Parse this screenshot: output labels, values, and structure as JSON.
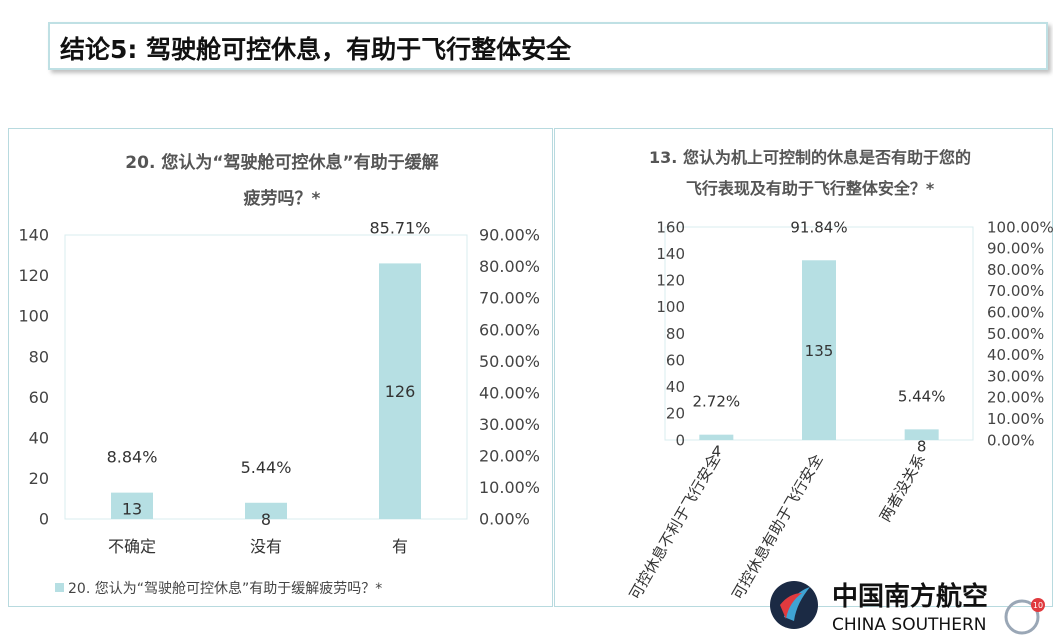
{
  "slide": {
    "title": "结论5: 驾驶舱可控休息，有助于飞行整体安全",
    "page_number": "10"
  },
  "chart_data": [
    {
      "type": "bar",
      "title": [
        "20. 您认为“驾驶舱可控休息”有助于缓解",
        "疲劳吗？*"
      ],
      "categories": [
        "不确定",
        "没有",
        "有"
      ],
      "values": [
        13,
        8,
        126
      ],
      "percent_labels": [
        "8.84%",
        "5.44%",
        "85.71%"
      ],
      "value_labels": [
        "13",
        "8",
        "126"
      ],
      "ylim": [
        0,
        140
      ],
      "yticks": [
        "0",
        "20",
        "40",
        "60",
        "80",
        "100",
        "120",
        "140"
      ],
      "y2lim": [
        0,
        90
      ],
      "y2ticks": [
        "0.00%",
        "10.00%",
        "20.00%",
        "30.00%",
        "40.00%",
        "50.00%",
        "60.00%",
        "70.00%",
        "80.00%",
        "90.00%"
      ],
      "legend": "20. 您认为“驾驶舱可控休息”有助于缓解疲劳吗？*",
      "legend_position": "bottom",
      "bar_color": "#b6dfe3"
    },
    {
      "type": "bar",
      "title": [
        "13. 您认为机上可控制的休息是否有助于您的",
        "飞行表现及有助于飞行整体安全？*"
      ],
      "categories": [
        "可控休息不利于飞行安全",
        "可控休息有助于飞行安全",
        "两者没关系"
      ],
      "values": [
        4,
        135,
        8
      ],
      "percent_labels": [
        "2.72%",
        "91.84%",
        "5.44%"
      ],
      "value_labels": [
        "4",
        "135",
        "8"
      ],
      "ylim": [
        0,
        160
      ],
      "yticks": [
        "0",
        "20",
        "40",
        "60",
        "80",
        "100",
        "120",
        "140",
        "160"
      ],
      "y2lim": [
        0,
        100
      ],
      "y2ticks": [
        "0.00%",
        "10.00%",
        "20.00%",
        "30.00%",
        "40.00%",
        "50.00%",
        "60.00%",
        "70.00%",
        "80.00%",
        "90.00%",
        "100.00%"
      ],
      "bar_color": "#b6dfe3"
    }
  ],
  "logo": {
    "chinese_name": "中国南方航空",
    "english_name": "CHINA SOUTHERN"
  }
}
